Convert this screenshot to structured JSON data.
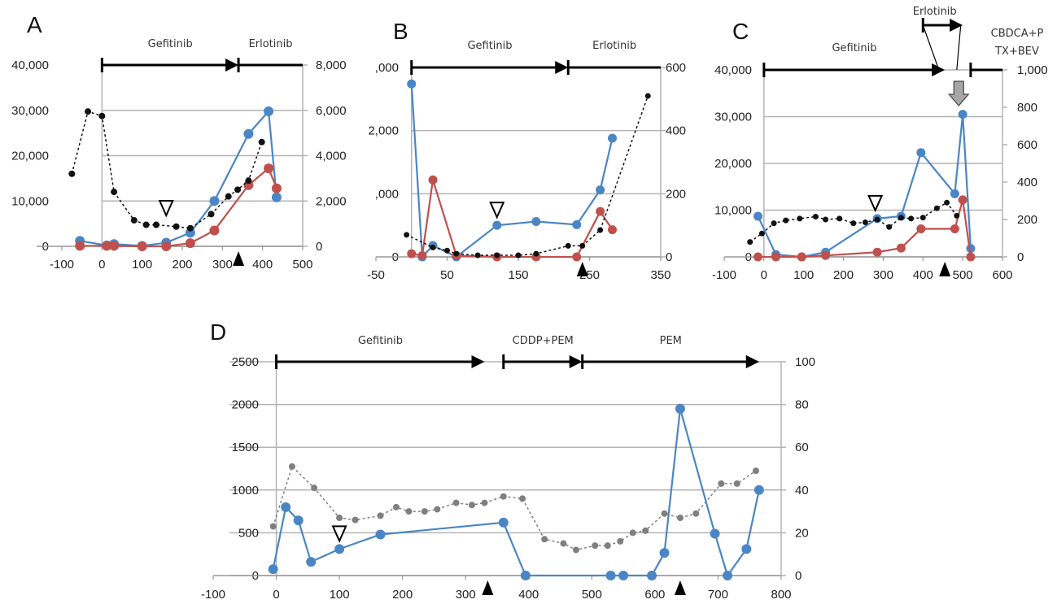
{
  "colors": {
    "blue": "#4a86c5",
    "red": "#c0504d",
    "black": "#111111",
    "gray": "#7f7f7f",
    "grid": "#b3b3b3"
  },
  "chart_data": [
    {
      "panel": "A",
      "type": "line",
      "xticks": [
        "-100",
        "0",
        "100",
        "200",
        "300",
        "400",
        "500"
      ],
      "xlim": [
        -100,
        500
      ],
      "yticks_left": [
        "0",
        "10,000",
        "20,000",
        "30,000",
        "40,000"
      ],
      "ylim_left": [
        0,
        40000
      ],
      "yticks_right": [
        "0",
        "2,000",
        "4,000",
        "6,000",
        "8,000"
      ],
      "ylim_right": [
        0,
        8000
      ],
      "treatments": [
        {
          "label": "Gefitinib",
          "start": 0,
          "end": 340
        },
        {
          "label": "Erlotinib",
          "start": 340,
          "end": 500
        }
      ],
      "open_triangle_x": 160,
      "filled_triangle_x": 340,
      "series": [
        {
          "name": "blue",
          "axis": "left",
          "style": "solid",
          "x": [
            -55,
            12,
            30,
            100,
            160,
            220,
            280,
            365,
            415,
            435
          ],
          "y": [
            1200,
            200,
            500,
            100,
            800,
            3000,
            10000,
            24800,
            29800,
            10800
          ]
        },
        {
          "name": "red",
          "axis": "left",
          "style": "solid",
          "x": [
            -55,
            12,
            30,
            100,
            160,
            220,
            280,
            365,
            415,
            435
          ],
          "y": [
            100,
            100,
            100,
            0,
            0,
            700,
            3500,
            13500,
            17200,
            12800
          ]
        },
        {
          "name": "black",
          "axis": "right",
          "style": "dotted",
          "x": [
            -75,
            -35,
            0,
            30,
            80,
            110,
            135,
            185,
            220,
            272,
            315,
            338,
            365,
            398
          ],
          "y": [
            3200,
            5950,
            5750,
            2400,
            1150,
            950,
            950,
            870,
            800,
            1420,
            2200,
            2500,
            2900,
            4600
          ]
        }
      ]
    },
    {
      "panel": "B",
      "type": "line",
      "xticks": [
        "-50",
        "50",
        "150",
        "250",
        "350"
      ],
      "xlim": [
        -50,
        350
      ],
      "yticks_left": [
        "0",
        ",000",
        "2,000",
        ",000"
      ],
      "ylim_left": [
        0,
        3000
      ],
      "yticks_right": [
        "0",
        "200",
        "400",
        "600"
      ],
      "ylim_right": [
        0,
        600
      ],
      "treatments": [
        {
          "label": "Gefitinib",
          "start": 0,
          "end": 220
        },
        {
          "label": "Erlotinib",
          "start": 220,
          "end": 350
        }
      ],
      "open_triangle_x": 120,
      "filled_triangle_x": 240,
      "series": [
        {
          "name": "blue",
          "axis": "left",
          "style": "solid",
          "x": [
            0,
            15,
            30,
            63,
            120,
            175,
            232,
            265,
            282
          ],
          "y": [
            2740,
            0,
            180,
            0,
            500,
            560,
            510,
            1060,
            1880
          ]
        },
        {
          "name": "red",
          "axis": "left",
          "style": "solid",
          "x": [
            0,
            15,
            30,
            63,
            120,
            175,
            232,
            265,
            282
          ],
          "y": [
            50,
            20,
            1220,
            20,
            0,
            0,
            0,
            720,
            430
          ]
        },
        {
          "name": "black",
          "axis": "right",
          "style": "dotted",
          "x": [
            -7,
            30,
            50,
            63,
            93,
            120,
            150,
            175,
            220,
            240,
            265,
            332
          ],
          "y": [
            70,
            30,
            20,
            10,
            5,
            5,
            5,
            10,
            35,
            35,
            85,
            510
          ]
        }
      ]
    },
    {
      "panel": "C",
      "type": "line",
      "xticks": [
        "-100",
        "0",
        "100",
        "200",
        "300",
        "400",
        "500",
        "600"
      ],
      "xlim": [
        -100,
        600
      ],
      "yticks_left": [
        "0",
        "10,000",
        "20,000",
        "30,000",
        "40,000"
      ],
      "ylim_left": [
        0,
        40000
      ],
      "yticks_right": [
        "0",
        "200",
        "400",
        "600",
        "800",
        "1,000"
      ],
      "ylim_right": [
        0,
        1000
      ],
      "treatments": [
        {
          "label": "Gefitinib",
          "start": 0,
          "end": 455
        },
        {
          "label": "Erlotinib",
          "start": 400,
          "end": 500
        },
        {
          "label": "CBDCA+P TX+BEV",
          "start": 520,
          "end": 600
        }
      ],
      "open_triangle_x": 280,
      "filled_triangle_x": 455,
      "gray_arrow_x": 490,
      "series": [
        {
          "name": "blue",
          "axis": "left",
          "style": "solid",
          "x": [
            -15,
            30,
            95,
            155,
            285,
            345,
            395,
            480,
            500,
            520
          ],
          "y": [
            8700,
            500,
            0,
            1000,
            8200,
            8700,
            22300,
            13500,
            30500,
            1800
          ]
        },
        {
          "name": "red",
          "axis": "left",
          "style": "solid",
          "x": [
            -15,
            30,
            95,
            155,
            285,
            345,
            395,
            480,
            500,
            520
          ],
          "y": [
            0,
            0,
            0,
            300,
            1000,
            1900,
            6000,
            6000,
            12200,
            0
          ]
        },
        {
          "name": "black",
          "axis": "right",
          "style": "dotted",
          "x": [
            -35,
            -5,
            25,
            55,
            90,
            130,
            155,
            190,
            225,
            255,
            285,
            315,
            345,
            370,
            400,
            435,
            460,
            485
          ],
          "y": [
            80,
            125,
            180,
            195,
            205,
            215,
            200,
            205,
            180,
            185,
            200,
            160,
            210,
            205,
            210,
            260,
            290,
            220
          ]
        }
      ]
    },
    {
      "panel": "D",
      "type": "line",
      "xticks": [
        "-100",
        "0",
        "100",
        "200",
        "300",
        "400",
        "500",
        "600",
        "700",
        "800"
      ],
      "xlim": [
        -100,
        800
      ],
      "yticks_left": [
        "0",
        "500",
        "1000",
        "1500",
        "2000",
        "2500"
      ],
      "ylim_left": [
        0,
        2500
      ],
      "yticks_right": [
        "0",
        "20",
        "40",
        "60",
        "80",
        "100"
      ],
      "ylim_right": [
        0,
        100
      ],
      "treatments": [
        {
          "label": "Gefitinib",
          "start": 0,
          "end": 330
        },
        {
          "label": "CDDP+PEM",
          "start": 360,
          "end": 485
        },
        {
          "label": "PEM",
          "start": 485,
          "end": 765
        }
      ],
      "open_triangle_x": 100,
      "filled_triangle_x": [
        335,
        640
      ],
      "series": [
        {
          "name": "blue",
          "axis": "left",
          "style": "solid",
          "x": [
            -5,
            15,
            35,
            55,
            100,
            165,
            360,
            395,
            530,
            550,
            595,
            615,
            640,
            695,
            715,
            745,
            765
          ],
          "y": [
            75,
            800,
            645,
            160,
            310,
            480,
            620,
            0,
            0,
            0,
            0,
            265,
            1950,
            490,
            0,
            310,
            1000
          ]
        },
        {
          "name": "gray",
          "axis": "right",
          "style": "dotted",
          "x": [
            -5,
            25,
            60,
            100,
            125,
            165,
            190,
            210,
            235,
            255,
            285,
            310,
            330,
            360,
            390,
            425,
            455,
            475,
            505,
            525,
            545,
            565,
            585,
            615,
            640,
            665,
            705,
            730,
            760
          ],
          "y": [
            23,
            51,
            41,
            27,
            26,
            28,
            32,
            30,
            30,
            31,
            34,
            33,
            34,
            37,
            36,
            17,
            15,
            12,
            14,
            14,
            16,
            20,
            21,
            29,
            27,
            29,
            43,
            43,
            49
          ]
        }
      ]
    }
  ]
}
